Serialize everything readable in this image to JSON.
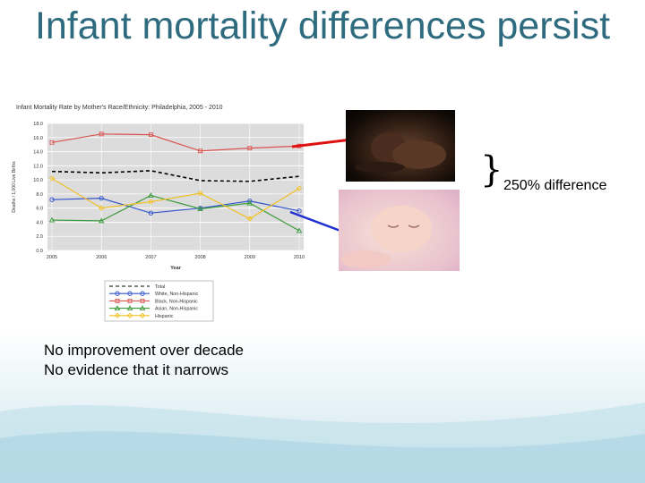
{
  "slide": {
    "title": "Infant mortality differences persist",
    "bullets": [
      "No improvement over decade",
      "No evidence that it narrows"
    ],
    "difference_label": "250% difference",
    "photos": [
      "photo-black-infant",
      "photo-white-infant"
    ]
  },
  "chart_data": {
    "type": "line",
    "title": "Infant Mortality Rate by Mother's Race/Ethnicity: Philadelphia, 2005 - 2010",
    "xlabel": "Year",
    "ylabel": "Deaths / 1,000 Live Births",
    "x": [
      2005,
      2006,
      2007,
      2008,
      2009,
      2010
    ],
    "y_ticks": [
      "0.0",
      "2.0",
      "4.0",
      "6.0",
      "8.0",
      "10.0",
      "12.0",
      "14.0",
      "16.0",
      "18.0"
    ],
    "ylim": [
      0,
      18
    ],
    "grid": true,
    "legend_position": "bottom",
    "series": [
      {
        "name": "Total",
        "color": "#000000",
        "dashed": true,
        "marker": "none",
        "values": [
          11.2,
          11.0,
          11.3,
          9.9,
          9.8,
          10.5
        ]
      },
      {
        "name": "White, Non-Hispanic",
        "color": "#3355cc",
        "marker": "circle",
        "values": [
          7.2,
          7.4,
          5.3,
          6.0,
          7.0,
          5.6
        ]
      },
      {
        "name": "Black, Non-Hispanic",
        "color": "#d9534f",
        "marker": "square",
        "values": [
          15.3,
          16.5,
          16.4,
          14.1,
          14.5,
          14.8
        ]
      },
      {
        "name": "Asian, Non-Hispanic",
        "color": "#3a9a3a",
        "marker": "triangle",
        "values": [
          4.3,
          4.2,
          7.8,
          5.9,
          6.7,
          2.8
        ]
      },
      {
        "name": "Hispanic",
        "color": "#f0c020",
        "marker": "diamond",
        "values": [
          10.2,
          6.0,
          6.9,
          8.1,
          4.5,
          8.8
        ]
      }
    ]
  },
  "colors": {
    "title": "#2f6b7f",
    "red_arrow": "#e01010",
    "blue_arrow": "#2030d0"
  }
}
